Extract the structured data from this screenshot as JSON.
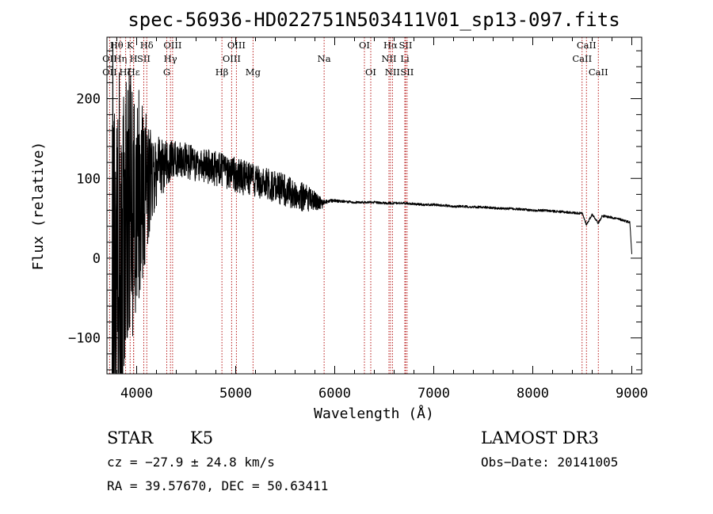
{
  "chart_data": {
    "type": "line",
    "title": "spec-56936-HD022751N503411V01_sp13-097.fits",
    "xlabel": "Wavelength (Å)",
    "ylabel": "Flux (relative)",
    "xlim": [
      3700,
      9100
    ],
    "ylim": [
      -145,
      277
    ],
    "xticks": [
      4000,
      5000,
      6000,
      7000,
      8000,
      9000
    ],
    "xtick_labels": [
      "4000",
      "5000",
      "6000",
      "7000",
      "8000",
      "9000"
    ],
    "yticks": [
      -100,
      0,
      100,
      200
    ],
    "ytick_labels": [
      "−100",
      "0",
      "100",
      "200"
    ],
    "grid": false,
    "series": [
      {
        "name": "spectrum",
        "color": "#000000",
        "x": [
          3750,
          3950,
          4050,
          4150,
          4300,
          4400,
          4500,
          4600,
          4700,
          4800,
          4900,
          5000,
          5100,
          5200,
          5300,
          5400,
          5500,
          5600,
          5700,
          5800,
          5880,
          5900,
          5950,
          6000,
          6100,
          6200,
          6300,
          6400,
          6500,
          6600,
          6700,
          6800,
          6900,
          7000,
          7100,
          7200,
          7300,
          7400,
          7500,
          7600,
          7700,
          7800,
          7900,
          8000,
          8100,
          8200,
          8300,
          8400,
          8500,
          8542,
          8600,
          8662,
          8700,
          8800,
          8900,
          8980,
          9000
        ],
        "y": [
          20,
          60,
          85,
          105,
          120,
          125,
          122,
          118,
          115,
          112,
          108,
          105,
          100,
          97,
          93,
          90,
          85,
          80,
          76,
          72,
          68,
          70,
          72,
          72,
          71,
          70,
          70,
          70,
          69,
          69,
          69,
          68,
          67,
          67,
          66,
          65,
          65,
          64,
          64,
          63,
          62,
          62,
          61,
          60,
          60,
          59,
          58,
          57,
          56,
          42,
          55,
          44,
          53,
          51,
          48,
          45,
          5
        ],
        "noise": [
          260,
          170,
          120,
          55,
          30,
          25,
          22,
          22,
          22,
          22,
          22,
          22,
          22,
          20,
          20,
          20,
          20,
          18,
          18,
          12,
          6,
          3,
          2,
          2,
          1.5,
          1.5,
          1.5,
          1.5,
          1.5,
          1.5,
          1.5,
          1.5,
          1.5,
          1.5,
          1.5,
          1.5,
          1.5,
          1.5,
          1.5,
          1.5,
          1.5,
          1.5,
          1.5,
          1.5,
          1.5,
          1.5,
          1.5,
          1.5,
          1.5,
          1.5,
          1.5,
          1.5,
          1.5,
          1.5,
          1.5,
          1.5,
          0
        ]
      }
    ],
    "line_markers": [
      {
        "label": "Hθ",
        "x": 3798,
        "row": 1
      },
      {
        "label": "K",
        "x": 3934,
        "row": 1
      },
      {
        "label": "Hδ",
        "x": 4102,
        "row": 1
      },
      {
        "label": "OIII",
        "x": 4363,
        "row": 1
      },
      {
        "label": "OIII",
        "x": 5007,
        "row": 1
      },
      {
        "label": "OI",
        "x": 6300,
        "row": 1
      },
      {
        "label": "Hα",
        "x": 6563,
        "row": 1
      },
      {
        "label": "SII",
        "x": 6716,
        "row": 1
      },
      {
        "label": "CaII",
        "x": 8542,
        "row": 1
      },
      {
        "label": "OII",
        "x": 3727,
        "row": 2
      },
      {
        "label": "Hη",
        "x": 3835,
        "row": 2
      },
      {
        "label": "H",
        "x": 3969,
        "row": 2
      },
      {
        "label": "SII",
        "x": 4072,
        "row": 2
      },
      {
        "label": "Hγ",
        "x": 4341,
        "row": 2
      },
      {
        "label": "OIII",
        "x": 4959,
        "row": 2
      },
      {
        "label": "Na",
        "x": 5893,
        "row": 2
      },
      {
        "label": "NII",
        "x": 6548,
        "row": 2
      },
      {
        "label": "Li",
        "x": 6708,
        "row": 2
      },
      {
        "label": "CaII",
        "x": 8498,
        "row": 2
      },
      {
        "label": "OII",
        "x": 3727,
        "row": 3
      },
      {
        "label": "Hζ",
        "x": 3889,
        "row": 3
      },
      {
        "label": "Hε",
        "x": 3970,
        "row": 3
      },
      {
        "label": "G",
        "x": 4304,
        "row": 3
      },
      {
        "label": "Hβ",
        "x": 4861,
        "row": 3
      },
      {
        "label": "Mg",
        "x": 5175,
        "row": 3
      },
      {
        "label": "OI",
        "x": 6364,
        "row": 3
      },
      {
        "label": "NII",
        "x": 6583,
        "row": 3
      },
      {
        "label": "SII",
        "x": 6731,
        "row": 3
      },
      {
        "label": "CaII",
        "x": 8662,
        "row": 3
      }
    ],
    "marker_color": "#b00000"
  },
  "info": {
    "object_type": "STAR",
    "subclass": "K5",
    "survey": "LAMOST DR3",
    "redshift": "cz = −27.9 ± 24.8 km/s",
    "obs_date": "Obs−Date: 20141005",
    "coords": "RA =  39.57670, DEC =  50.63411"
  }
}
